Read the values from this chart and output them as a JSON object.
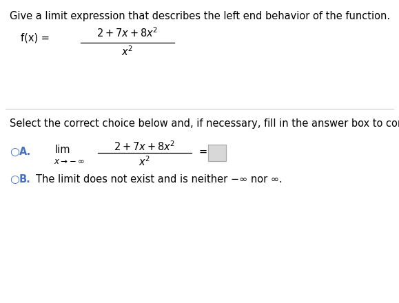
{
  "background_color": "#ffffff",
  "title_text": "Give a limit expression that describes the left end behavior of the function.",
  "separator_text": "Select the correct choice below and, if necessary, fill in the answer box to complete your choice.",
  "choice_B_text": "The limit does not exist and is neither −∞ nor ∞.",
  "font_color": "#000000",
  "circle_color": "#4472c4",
  "font_size_main": 10.5,
  "font_size_small": 8.5,
  "box_fill": "#d8d8d8",
  "box_edge": "#aaaaaa",
  "line_color": "#cccccc"
}
